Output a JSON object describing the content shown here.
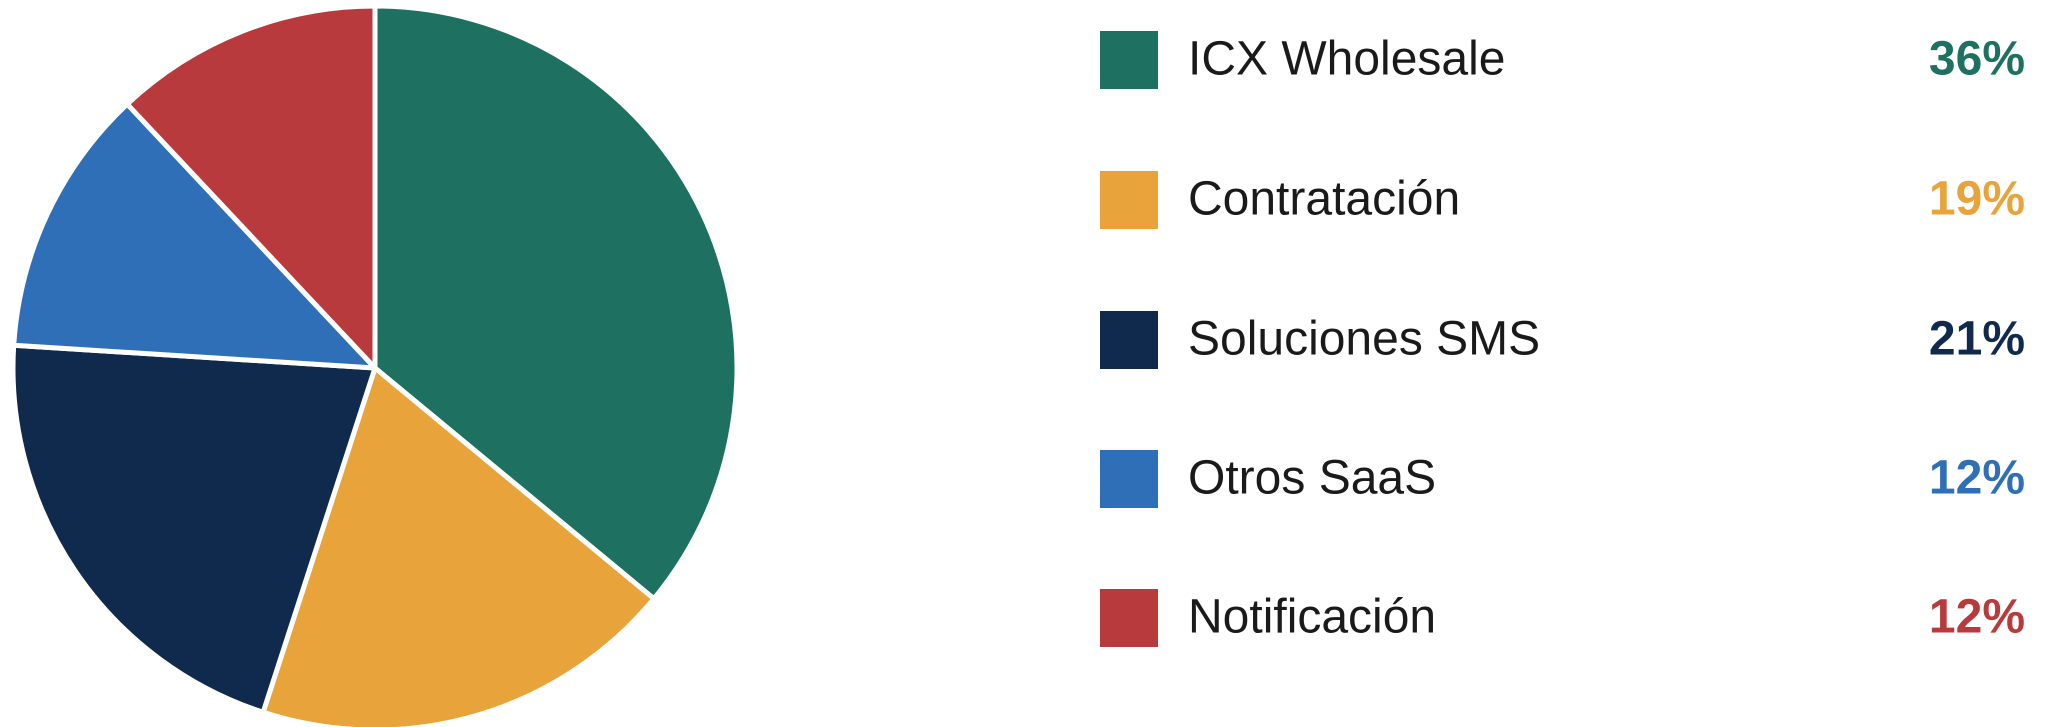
{
  "chart_data": {
    "type": "pie",
    "categories": [
      "ICX Wholesale",
      "Contratación",
      "Soluciones SMS",
      "Otros SaaS",
      "Notificación"
    ],
    "values": [
      36,
      19,
      21,
      12,
      12
    ],
    "value_labels": [
      "36%",
      "19%",
      "21%",
      "12%",
      "12%"
    ],
    "colors": [
      "#1e7060",
      "#e8a43a",
      "#102a4e",
      "#2f6fb7",
      "#b83a3c"
    ],
    "legend": "right"
  }
}
